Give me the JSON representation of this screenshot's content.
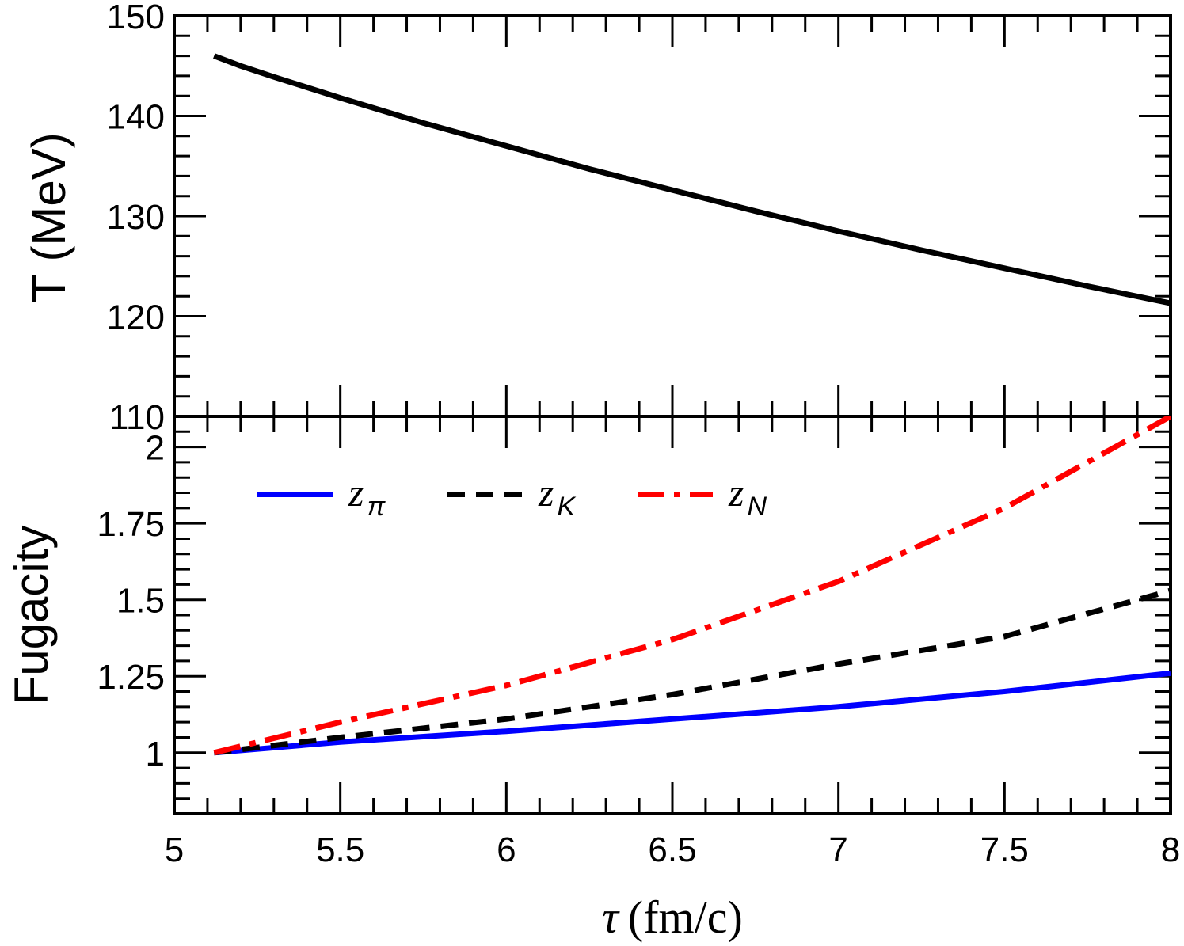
{
  "chart_data": [
    {
      "type": "line",
      "panel": "top",
      "ylabel": "T (MeV)",
      "xlim": [
        5,
        8
      ],
      "ylim": [
        110,
        150
      ],
      "yticks": [
        "150",
        "140",
        "130",
        "120",
        "110"
      ],
      "series": [
        {
          "color": "#000000",
          "dash": "solid",
          "x": [
            5.12,
            5.2,
            5.3,
            5.5,
            5.75,
            6.0,
            6.25,
            6.5,
            6.75,
            7.0,
            7.25,
            7.5,
            7.75,
            8.0
          ],
          "y": [
            146.0,
            145.0,
            143.9,
            141.8,
            139.3,
            137.0,
            134.7,
            132.6,
            130.5,
            128.5,
            126.6,
            124.8,
            123.0,
            121.3
          ]
        }
      ]
    },
    {
      "type": "line",
      "panel": "bottom",
      "ylabel": "Fugacity",
      "xlabel_symbol": "τ",
      "xlabel_unit": "(fm/c)",
      "xlim": [
        5,
        8
      ],
      "ylim": [
        0.8,
        2.1
      ],
      "xticks": [
        "5",
        "5.5",
        "6",
        "6.5",
        "7",
        "7.5",
        "8"
      ],
      "yticks": [
        "2",
        "1.75",
        "1.5",
        "1.25",
        "1"
      ],
      "legend_position": "top-left",
      "series": [
        {
          "name": "z",
          "sub": "π",
          "color": "#0000ff",
          "dash": "solid",
          "x": [
            5.12,
            5.5,
            6.0,
            6.5,
            7.0,
            7.5,
            8.0
          ],
          "y": [
            1.0,
            1.035,
            1.07,
            1.11,
            1.15,
            1.2,
            1.26
          ]
        },
        {
          "name": "z",
          "sub": "K",
          "color": "#000000",
          "dash": "dashed",
          "x": [
            5.12,
            5.5,
            6.0,
            6.5,
            7.0,
            7.5,
            8.0
          ],
          "y": [
            1.0,
            1.05,
            1.11,
            1.19,
            1.29,
            1.38,
            1.53
          ]
        },
        {
          "name": "z",
          "sub": "N",
          "color": "#ff0000",
          "dash": "dashdot",
          "x": [
            5.12,
            5.5,
            6.0,
            6.5,
            7.0,
            7.5,
            8.0
          ],
          "y": [
            1.0,
            1.1,
            1.22,
            1.37,
            1.56,
            1.8,
            2.1
          ]
        }
      ]
    }
  ]
}
